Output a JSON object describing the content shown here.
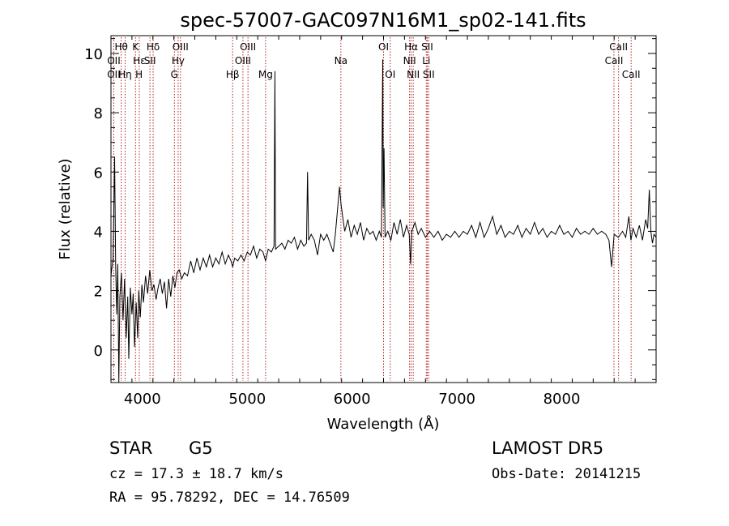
{
  "chart_data": {
    "type": "line",
    "title": "spec-57007-GAC097N16M1_sp02-141.fits",
    "xlabel": "Wavelength (Å)",
    "ylabel": "Flux (relative)",
    "xlim": [
      3700,
      8900
    ],
    "ylim": [
      -1.1,
      10.6
    ],
    "xticks": [
      4000,
      5000,
      6000,
      7000,
      8000
    ],
    "yticks": [
      0,
      2,
      4,
      6,
      8,
      10
    ],
    "grid": false,
    "legend": "none",
    "line_color": "#000000",
    "marker_color": "#b22222",
    "spectral_lines": [
      {
        "label": "Hθ",
        "x": 3798,
        "row": 0
      },
      {
        "label": "OII",
        "x": 3727,
        "row": 1
      },
      {
        "label": "OII",
        "x": 3727,
        "row": 2
      },
      {
        "label": "K",
        "x": 3934,
        "row": 0
      },
      {
        "label": "Hε",
        "x": 3970,
        "row": 1
      },
      {
        "label": "Hη",
        "x": 3835,
        "row": 2
      },
      {
        "label": "H",
        "x": 3968,
        "row": 2
      },
      {
        "label": "Hδ",
        "x": 4102,
        "row": 0
      },
      {
        "label": "SII",
        "x": 4072,
        "row": 1
      },
      {
        "label": "OIII",
        "x": 4363,
        "row": 0
      },
      {
        "label": "Hγ",
        "x": 4341,
        "row": 1
      },
      {
        "label": "G",
        "x": 4305,
        "row": 2
      },
      {
        "label": "OIII",
        "x": 5007,
        "row": 0
      },
      {
        "label": "OIII",
        "x": 4959,
        "row": 1
      },
      {
        "label": "Hβ",
        "x": 4861,
        "row": 2
      },
      {
        "label": "Mg",
        "x": 5175,
        "row": 2
      },
      {
        "label": "Na",
        "x": 5893,
        "row": 1
      },
      {
        "label": "OI",
        "x": 6300,
        "row": 0
      },
      {
        "label": "OI",
        "x": 6364,
        "row": 2
      },
      {
        "label": "Hα",
        "x": 6563,
        "row": 0
      },
      {
        "label": "NII",
        "x": 6548,
        "row": 1
      },
      {
        "label": "NII",
        "x": 6583,
        "row": 2
      },
      {
        "label": "SII",
        "x": 6717,
        "row": 0
      },
      {
        "label": "Li",
        "x": 6708,
        "row": 1
      },
      {
        "label": "SII",
        "x": 6731,
        "row": 2
      },
      {
        "label": "CaII",
        "x": 8542,
        "row": 0
      },
      {
        "label": "CaII",
        "x": 8498,
        "row": 1
      },
      {
        "label": "CaII",
        "x": 8662,
        "row": 2
      }
    ],
    "flux": [
      [
        3700,
        2.5
      ],
      [
        3720,
        3.1
      ],
      [
        3735,
        6.5
      ],
      [
        3745,
        2.8
      ],
      [
        3755,
        1.2
      ],
      [
        3765,
        2.9
      ],
      [
        3775,
        -1.1
      ],
      [
        3785,
        1.8
      ],
      [
        3800,
        2.6
      ],
      [
        3815,
        1.0
      ],
      [
        3830,
        2.4
      ],
      [
        3845,
        0.4
      ],
      [
        3860,
        1.8
      ],
      [
        3870,
        -0.3
      ],
      [
        3885,
        2.1
      ],
      [
        3900,
        1.2
      ],
      [
        3912,
        1.9
      ],
      [
        3925,
        0.1
      ],
      [
        3940,
        1.6
      ],
      [
        3955,
        0.4
      ],
      [
        3965,
        2.0
      ],
      [
        3980,
        1.1
      ],
      [
        3995,
        2.2
      ],
      [
        4010,
        1.6
      ],
      [
        4030,
        2.5
      ],
      [
        4050,
        1.9
      ],
      [
        4070,
        2.7
      ],
      [
        4090,
        2.0
      ],
      [
        4110,
        2.2
      ],
      [
        4130,
        1.7
      ],
      [
        4150,
        2.1
      ],
      [
        4170,
        2.4
      ],
      [
        4190,
        1.9
      ],
      [
        4210,
        2.3
      ],
      [
        4230,
        1.4
      ],
      [
        4250,
        2.4
      ],
      [
        4270,
        1.8
      ],
      [
        4290,
        2.5
      ],
      [
        4310,
        2.1
      ],
      [
        4330,
        2.6
      ],
      [
        4350,
        2.7
      ],
      [
        4375,
        2.4
      ],
      [
        4400,
        2.6
      ],
      [
        4430,
        2.5
      ],
      [
        4460,
        3.0
      ],
      [
        4490,
        2.6
      ],
      [
        4520,
        3.1
      ],
      [
        4550,
        2.7
      ],
      [
        4580,
        3.1
      ],
      [
        4610,
        2.8
      ],
      [
        4640,
        3.2
      ],
      [
        4670,
        2.8
      ],
      [
        4700,
        3.1
      ],
      [
        4730,
        2.9
      ],
      [
        4760,
        3.3
      ],
      [
        4790,
        2.9
      ],
      [
        4820,
        3.2
      ],
      [
        4845,
        3.0
      ],
      [
        4861,
        2.8
      ],
      [
        4880,
        3.1
      ],
      [
        4910,
        3.0
      ],
      [
        4940,
        3.2
      ],
      [
        4970,
        3.0
      ],
      [
        5000,
        3.3
      ],
      [
        5030,
        3.2
      ],
      [
        5060,
        3.5
      ],
      [
        5090,
        3.1
      ],
      [
        5120,
        3.4
      ],
      [
        5150,
        3.3
      ],
      [
        5175,
        3.0
      ],
      [
        5200,
        3.4
      ],
      [
        5230,
        3.3
      ],
      [
        5255,
        3.5
      ],
      [
        5264,
        9.4
      ],
      [
        5270,
        3.4
      ],
      [
        5300,
        3.5
      ],
      [
        5330,
        3.6
      ],
      [
        5360,
        3.4
      ],
      [
        5390,
        3.7
      ],
      [
        5420,
        3.6
      ],
      [
        5450,
        3.8
      ],
      [
        5480,
        3.4
      ],
      [
        5510,
        3.7
      ],
      [
        5540,
        3.5
      ],
      [
        5565,
        3.6
      ],
      [
        5575,
        6.0
      ],
      [
        5585,
        3.7
      ],
      [
        5610,
        3.9
      ],
      [
        5640,
        3.7
      ],
      [
        5670,
        3.2
      ],
      [
        5700,
        3.9
      ],
      [
        5730,
        3.7
      ],
      [
        5760,
        3.9
      ],
      [
        5790,
        3.6
      ],
      [
        5820,
        3.3
      ],
      [
        5840,
        3.9
      ],
      [
        5860,
        4.7
      ],
      [
        5880,
        5.5
      ],
      [
        5895,
        4.9
      ],
      [
        5910,
        4.5
      ],
      [
        5930,
        4.0
      ],
      [
        5960,
        4.4
      ],
      [
        5990,
        3.8
      ],
      [
        6020,
        4.2
      ],
      [
        6050,
        3.9
      ],
      [
        6080,
        4.3
      ],
      [
        6110,
        3.7
      ],
      [
        6140,
        4.1
      ],
      [
        6170,
        3.9
      ],
      [
        6200,
        4.0
      ],
      [
        6230,
        3.7
      ],
      [
        6260,
        4.0
      ],
      [
        6280,
        3.8
      ],
      [
        6292,
        9.8
      ],
      [
        6297,
        4.8
      ],
      [
        6305,
        6.8
      ],
      [
        6315,
        3.8
      ],
      [
        6340,
        4.0
      ],
      [
        6370,
        3.7
      ],
      [
        6400,
        4.3
      ],
      [
        6430,
        3.9
      ],
      [
        6460,
        4.4
      ],
      [
        6490,
        3.8
      ],
      [
        6520,
        4.2
      ],
      [
        6545,
        3.9
      ],
      [
        6558,
        2.9
      ],
      [
        6570,
        4.0
      ],
      [
        6600,
        4.3
      ],
      [
        6630,
        3.9
      ],
      [
        6660,
        4.1
      ],
      [
        6700,
        3.8
      ],
      [
        6740,
        4.0
      ],
      [
        6780,
        3.8
      ],
      [
        6820,
        4.0
      ],
      [
        6860,
        3.7
      ],
      [
        6900,
        3.9
      ],
      [
        6940,
        3.8
      ],
      [
        6980,
        4.0
      ],
      [
        7020,
        3.8
      ],
      [
        7060,
        4.0
      ],
      [
        7100,
        3.9
      ],
      [
        7140,
        4.2
      ],
      [
        7180,
        3.8
      ],
      [
        7220,
        4.3
      ],
      [
        7260,
        3.8
      ],
      [
        7300,
        4.1
      ],
      [
        7340,
        4.5
      ],
      [
        7380,
        3.9
      ],
      [
        7420,
        4.2
      ],
      [
        7460,
        3.8
      ],
      [
        7500,
        4.0
      ],
      [
        7540,
        3.9
      ],
      [
        7580,
        4.2
      ],
      [
        7620,
        3.8
      ],
      [
        7660,
        4.1
      ],
      [
        7700,
        3.9
      ],
      [
        7740,
        4.3
      ],
      [
        7780,
        3.9
      ],
      [
        7820,
        4.1
      ],
      [
        7860,
        3.8
      ],
      [
        7900,
        4.0
      ],
      [
        7940,
        3.9
      ],
      [
        7980,
        4.2
      ],
      [
        8020,
        3.9
      ],
      [
        8060,
        4.0
      ],
      [
        8100,
        3.8
      ],
      [
        8140,
        4.1
      ],
      [
        8180,
        3.9
      ],
      [
        8220,
        4.0
      ],
      [
        8260,
        3.9
      ],
      [
        8300,
        4.1
      ],
      [
        8340,
        3.9
      ],
      [
        8380,
        4.0
      ],
      [
        8420,
        3.9
      ],
      [
        8450,
        3.7
      ],
      [
        8475,
        2.8
      ],
      [
        8500,
        3.9
      ],
      [
        8540,
        3.8
      ],
      [
        8580,
        4.0
      ],
      [
        8610,
        3.8
      ],
      [
        8640,
        4.5
      ],
      [
        8660,
        3.7
      ],
      [
        8680,
        4.1
      ],
      [
        8710,
        3.8
      ],
      [
        8740,
        4.2
      ],
      [
        8770,
        3.7
      ],
      [
        8800,
        4.4
      ],
      [
        8820,
        4.1
      ],
      [
        8835,
        5.4
      ],
      [
        8850,
        4.0
      ],
      [
        8865,
        3.6
      ],
      [
        8880,
        3.9
      ],
      [
        8900,
        3.8
      ]
    ]
  },
  "info": {
    "object_class": "STAR",
    "subclass": "G5",
    "survey": "LAMOST DR5",
    "redshift": "cz = 17.3 ± 18.7 km/s",
    "obs_date": "Obs-Date: 20141215",
    "coords": "RA =  95.78292, DEC =  14.76509"
  }
}
